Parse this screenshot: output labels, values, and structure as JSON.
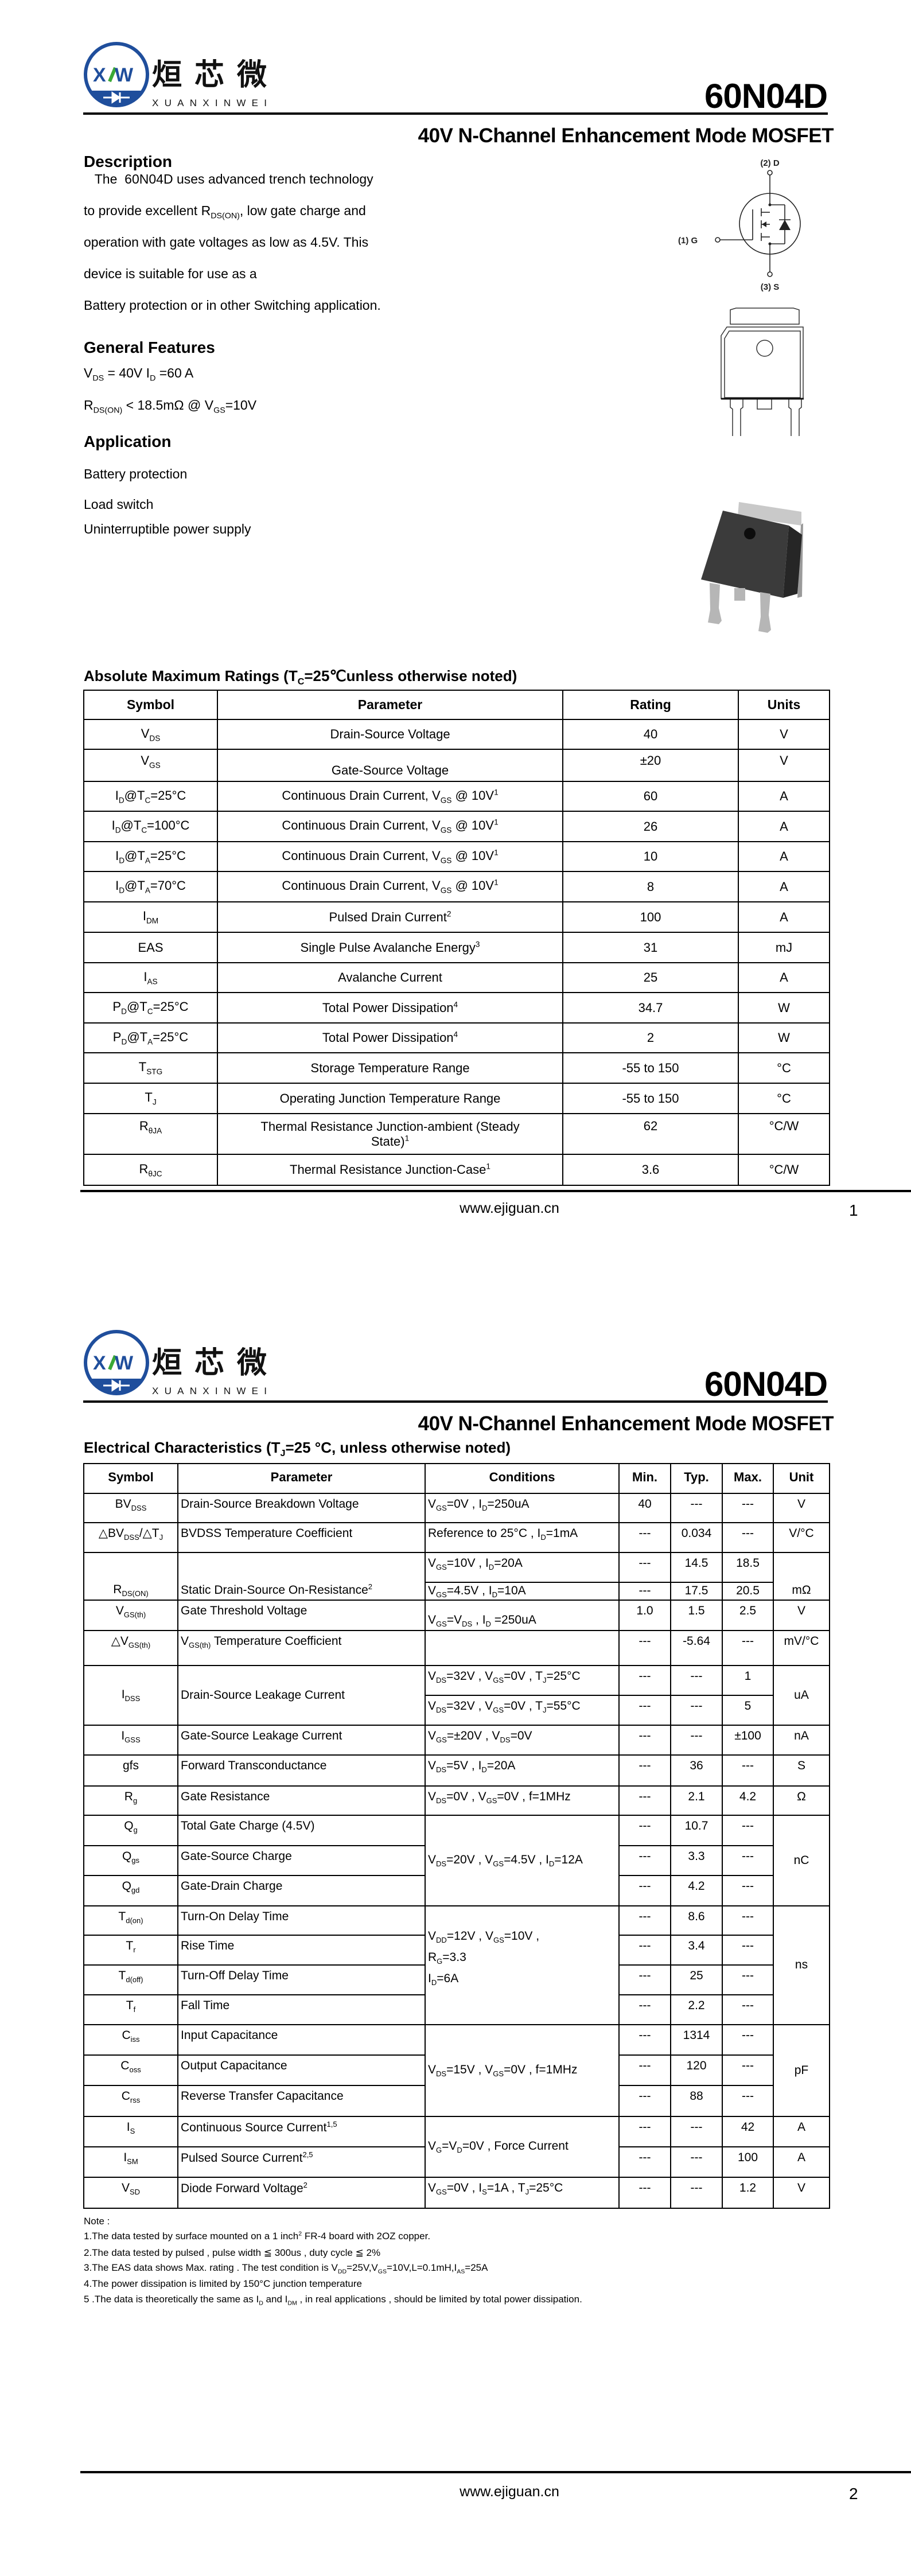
{
  "header": {
    "logo": {
      "mark": "XW",
      "chinese_name": "烜芯微",
      "latin_name": "XUANXINWEI",
      "blue": "#1f4e9c",
      "green": "#3aa935"
    },
    "part_number": "60N04D",
    "subtitle": "40V N-Channel Enhancement Mode MOSFET"
  },
  "description": {
    "heading": "Description",
    "lines": [
      "   The  60N04D uses advanced trench technology",
      [
        "to provide excellent R",
        {
          "sub": "DS(ON)"
        },
        ", low gate charge and"
      ],
      "operation with gate voltages as low as 4.5V. This",
      "device is suitable for use as a",
      "Battery protection or in other Switching application."
    ]
  },
  "features": {
    "heading": "General Features",
    "lines": [
      [
        "V",
        {
          "sub": "DS"
        },
        " = 40V  I",
        {
          "sub": "D"
        },
        " =60 A"
      ],
      [
        "R",
        {
          "sub": "DS(ON)"
        },
        " < 18.5mΩ @ V",
        {
          "sub": "GS"
        },
        "=10V"
      ]
    ]
  },
  "application": {
    "heading": "Application",
    "items": [
      "Battery protection",
      "Load switch",
      "Uninterruptible power supply"
    ]
  },
  "symbol_diagram": {
    "drain": "(2) D",
    "gate": "(1) G",
    "source": "(3) S"
  },
  "abs_max": {
    "title": [
      "Absolute Maximum Ratings (T",
      {
        "sub": "C"
      },
      "=25℃unless otherwise noted)"
    ],
    "headers": [
      "Symbol",
      "Parameter",
      "Rating",
      "Units"
    ],
    "rows": [
      {
        "symbol": [
          "V",
          {
            "sub": "DS"
          }
        ],
        "parameter": "Drain-Source Voltage",
        "rating": "40",
        "unit": "V"
      },
      {
        "symbol": [
          "V",
          {
            "sub": "GS"
          }
        ],
        "parameter": "Gate-Source Voltage",
        "rating": "±20",
        "unit": "V"
      },
      {
        "symbol": [
          "I",
          {
            "sub": "D"
          },
          "@T",
          {
            "sub": "C"
          },
          "=25°C"
        ],
        "parameter": [
          "Continuous Drain Current, V",
          {
            "sub": "GS"
          },
          " @ 10V",
          {
            "sup": "1"
          }
        ],
        "rating": "60",
        "unit": "A"
      },
      {
        "symbol": [
          "I",
          {
            "sub": "D"
          },
          "@T",
          {
            "sub": "C"
          },
          "=100°C"
        ],
        "parameter": [
          "Continuous Drain Current, V",
          {
            "sub": "GS"
          },
          " @ 10V",
          {
            "sup": "1"
          }
        ],
        "rating": "26",
        "unit": "A"
      },
      {
        "symbol": [
          "I",
          {
            "sub": "D"
          },
          "@T",
          {
            "sub": "A"
          },
          "=25°C"
        ],
        "parameter": [
          "Continuous Drain Current, V",
          {
            "sub": "GS"
          },
          " @ 10V",
          {
            "sup": "1"
          }
        ],
        "rating": "10",
        "unit": "A"
      },
      {
        "symbol": [
          "I",
          {
            "sub": "D"
          },
          "@T",
          {
            "sub": "A"
          },
          "=70°C"
        ],
        "parameter": [
          "Continuous Drain Current, V",
          {
            "sub": "GS"
          },
          " @ 10V",
          {
            "sup": "1"
          }
        ],
        "rating": "8",
        "unit": "A"
      },
      {
        "symbol": [
          "I",
          {
            "sub": "DM"
          }
        ],
        "parameter": [
          "Pulsed Drain Current",
          {
            "sup": "2"
          }
        ],
        "rating": "100",
        "unit": "A"
      },
      {
        "symbol": "EAS",
        "parameter": [
          "Single Pulse Avalanche Energy",
          {
            "sup": "3"
          }
        ],
        "rating": "31",
        "unit": "mJ"
      },
      {
        "symbol": [
          "I",
          {
            "sub": "AS"
          }
        ],
        "parameter": "Avalanche Current",
        "rating": "25",
        "unit": "A"
      },
      {
        "symbol": [
          "P",
          {
            "sub": "D"
          },
          "@T",
          {
            "sub": "C"
          },
          "=25°C"
        ],
        "parameter": [
          "Total Power Dissipation",
          {
            "sup": "4"
          }
        ],
        "rating": "34.7",
        "unit": "W"
      },
      {
        "symbol": [
          "P",
          {
            "sub": "D"
          },
          "@T",
          {
            "sub": "A"
          },
          "=25°C"
        ],
        "parameter": [
          "Total Power Dissipation",
          {
            "sup": "4"
          }
        ],
        "rating": "2",
        "unit": "W"
      },
      {
        "symbol": [
          "T",
          {
            "sub": "STG"
          }
        ],
        "parameter": "Storage Temperature Range",
        "rating": "-55 to 150",
        "unit": "°C"
      },
      {
        "symbol": [
          "T",
          {
            "sub": "J"
          }
        ],
        "parameter": "Operating Junction Temperature Range",
        "rating": "-55 to 150",
        "unit": "°C"
      },
      {
        "symbol": [
          "R",
          {
            "sub": "θJA"
          }
        ],
        "parameter": [
          "Thermal Resistance Junction-ambient (Steady State)",
          {
            "sup": "1"
          }
        ],
        "rating": "62",
        "unit": "°C/W"
      },
      {
        "symbol": [
          "R",
          {
            "sub": "θJC"
          }
        ],
        "parameter": [
          "Thermal Resistance Junction-Case",
          {
            "sup": "1"
          }
        ],
        "rating": "3.6",
        "unit": "°C/W"
      }
    ]
  },
  "elec": {
    "title": [
      "Electrical Characteristics (T",
      {
        "sub": "J"
      },
      "=25  °C, unless otherwise noted)"
    ],
    "headers": [
      "Symbol",
      "Parameter",
      "Conditions",
      "Min.",
      "Typ.",
      "Max.",
      "Unit"
    ],
    "rows": [
      {
        "symbol": [
          "BV",
          {
            "sub": "DSS"
          }
        ],
        "parameter": "Drain-Source Breakdown Voltage",
        "conditions": [
          "V",
          {
            "sub": "GS"
          },
          "=0V , I",
          {
            "sub": "D"
          },
          "=250uA"
        ],
        "min": "40",
        "typ": "---",
        "max": "---",
        "unit": "V"
      },
      {
        "symbol": [
          "△BV",
          {
            "sub": "DSS"
          },
          "/△T",
          {
            "sub": "J"
          }
        ],
        "parameter": "BVDSS Temperature Coefficient",
        "conditions": [
          "Reference to 25°C , I",
          {
            "sub": "D"
          },
          "=1mA"
        ],
        "min": "---",
        "typ": "0.034",
        "max": "---",
        "unit": "V/°C"
      },
      {
        "symbol": [
          "R",
          {
            "sub": "DS(ON)"
          }
        ],
        "parameter": [
          "Static Drain-Source On-Resistance",
          {
            "sup": "2"
          }
        ],
        "conditions": [
          [
            "V",
            {
              "sub": "GS"
            },
            "=10V , I",
            {
              "sub": "D"
            },
            "=20A"
          ],
          [
            "V",
            {
              "sub": "GS"
            },
            "=4.5V , I",
            {
              "sub": "D"
            },
            "=10A"
          ]
        ],
        "min": [
          "---",
          "---"
        ],
        "typ": [
          "14.5",
          "17.5"
        ],
        "max": [
          "18.5",
          "20.5"
        ],
        "unit": "mΩ"
      },
      {
        "symbol": [
          "V",
          {
            "sub": "GS(th)"
          }
        ],
        "parameter": "Gate Threshold Voltage",
        "conditions": [
          "V",
          {
            "sub": "GS"
          },
          "=V",
          {
            "sub": "DS"
          },
          " , I",
          {
            "sub": "D"
          },
          " =250uA"
        ],
        "min": "1.0",
        "typ": "1.5",
        "max": "2.5",
        "unit": "V"
      },
      {
        "symbol": [
          "△V",
          {
            "sub": "GS(th)"
          }
        ],
        "parameter": [
          "V",
          {
            "sub": "GS(th)"
          },
          " Temperature Coefficient"
        ],
        "min": "---",
        "typ": "-5.64",
        "max": "---",
        "unit": "mV/°C"
      },
      {
        "symbol": [
          "I",
          {
            "sub": "DSS"
          }
        ],
        "parameter": "Drain-Source Leakage Current",
        "conditions": [
          [
            "V",
            {
              "sub": "DS"
            },
            "=32V , V",
            {
              "sub": "GS"
            },
            "=0V , T",
            {
              "sub": "J"
            },
            "=25°C"
          ],
          [
            "V",
            {
              "sub": "DS"
            },
            "=32V , V",
            {
              "sub": "GS"
            },
            "=0V , T",
            {
              "sub": "J"
            },
            "=55°C"
          ]
        ],
        "min": [
          "---",
          "---"
        ],
        "typ": [
          "---",
          "---"
        ],
        "max": [
          "1",
          "5"
        ],
        "unit": "uA"
      },
      {
        "symbol": [
          "I",
          {
            "sub": "GSS"
          }
        ],
        "parameter": "Gate-Source Leakage Current",
        "conditions": [
          "V",
          {
            "sub": "GS"
          },
          "=±20V , V",
          {
            "sub": "DS"
          },
          "=0V"
        ],
        "min": "---",
        "typ": "---",
        "max": "±100",
        "unit": "nA"
      },
      {
        "symbol": "gfs",
        "parameter": "Forward Transconductance",
        "conditions": [
          "V",
          {
            "sub": "DS"
          },
          "=5V , I",
          {
            "sub": "D"
          },
          "=20A"
        ],
        "min": "---",
        "typ": "36",
        "max": "---",
        "unit": "S"
      },
      {
        "symbol": [
          "R",
          {
            "sub": "g"
          }
        ],
        "parameter": "Gate Resistance",
        "conditions": [
          "V",
          {
            "sub": "DS"
          },
          "=0V , V",
          {
            "sub": "GS"
          },
          "=0V , f=1MHz"
        ],
        "min": "---",
        "typ": "2.1",
        "max": "4.2",
        "unit": "Ω"
      },
      {
        "symbol": [
          "Q",
          {
            "sub": "g"
          }
        ],
        "parameter": "Total Gate Charge (4.5V)",
        "conditions": [
          "V",
          {
            "sub": "DS"
          },
          "=20V , V",
          {
            "sub": "GS"
          },
          "=4.5V , I",
          {
            "sub": "D"
          },
          "=12A"
        ],
        "min": "---",
        "typ": "10.7",
        "max": "---",
        "unit": "nC"
      },
      {
        "symbol": [
          "Q",
          {
            "sub": "gs"
          }
        ],
        "parameter": "Gate-Source Charge",
        "min": "---",
        "typ": "3.3",
        "max": "---"
      },
      {
        "symbol": [
          "Q",
          {
            "sub": "gd"
          }
        ],
        "parameter": "Gate-Drain Charge",
        "min": "---",
        "typ": "4.2",
        "max": "---"
      },
      {
        "symbol": [
          "T",
          {
            "sub": "d(on)"
          }
        ],
        "parameter": "Turn-On Delay Time",
        "conditions": [
          [
            "V",
            {
              "sub": "DD"
            },
            "=12V , V",
            {
              "sub": "GS"
            },
            "=10V ,"
          ],
          [
            "R",
            {
              "sub": "G"
            },
            "=3.3"
          ],
          [
            "I",
            {
              "sub": "D"
            },
            "=6A"
          ]
        ],
        "min": "---",
        "typ": "8.6",
        "max": "---",
        "unit": "ns"
      },
      {
        "symbol": [
          "T",
          {
            "sub": "r"
          }
        ],
        "parameter": "Rise Time",
        "min": "---",
        "typ": "3.4",
        "max": "---"
      },
      {
        "symbol": [
          "T",
          {
            "sub": "d(off)"
          }
        ],
        "parameter": "Turn-Off Delay Time",
        "min": "---",
        "typ": "25",
        "max": "---"
      },
      {
        "symbol": [
          "T",
          {
            "sub": "f"
          }
        ],
        "parameter": "Fall Time",
        "min": "---",
        "typ": "2.2",
        "max": "---"
      },
      {
        "symbol": [
          "C",
          {
            "sub": "iss"
          }
        ],
        "parameter": "Input Capacitance",
        "conditions": [
          "V",
          {
            "sub": "DS"
          },
          "=15V , V",
          {
            "sub": "GS"
          },
          "=0V , f=1MHz"
        ],
        "min": "---",
        "typ": "1314",
        "max": "---",
        "unit": "pF"
      },
      {
        "symbol": [
          "C",
          {
            "sub": "oss"
          }
        ],
        "parameter": "Output Capacitance",
        "min": "---",
        "typ": "120",
        "max": "---"
      },
      {
        "symbol": [
          "C",
          {
            "sub": "rss"
          }
        ],
        "parameter": "Reverse Transfer Capacitance",
        "min": "---",
        "typ": "88",
        "max": "---"
      },
      {
        "symbol": [
          "I",
          {
            "sub": "S"
          }
        ],
        "parameter": [
          "Continuous Source Current",
          {
            "sup": "1,5"
          }
        ],
        "conditions": [
          "V",
          {
            "sub": "G"
          },
          "=V",
          {
            "sub": "D"
          },
          "=0V , Force Current"
        ],
        "min": "---",
        "typ": "---",
        "max": "42",
        "unit": "A"
      },
      {
        "symbol": [
          "I",
          {
            "sub": "SM"
          }
        ],
        "parameter": [
          "Pulsed Source Current",
          {
            "sup": "2,5"
          }
        ],
        "min": "---",
        "typ": "---",
        "max": "100",
        "unit": "A"
      },
      {
        "symbol": [
          "V",
          {
            "sub": "SD"
          }
        ],
        "parameter": [
          "Diode Forward Voltage",
          {
            "sup": "2"
          }
        ],
        "conditions": [
          "V",
          {
            "sub": "GS"
          },
          "=0V , I",
          {
            "sub": "S"
          },
          "=1A , T",
          {
            "sub": "J"
          },
          "=25°C"
        ],
        "min": "---",
        "typ": "---",
        "max": "1.2",
        "unit": "V"
      }
    ]
  },
  "notes": {
    "heading": "Note :",
    "items": [
      [
        "1.The data tested by surface mounted on a 1 inch",
        {
          "sup": "2"
        },
        " FR-4 board with 2OZ copper."
      ],
      "2.The data tested by pulsed , pulse width ≦ 300us , duty cycle ≦ 2%",
      [
        "3.The EAS data shows Max. rating . The test condition is V",
        {
          "sub": "DD"
        },
        "=25V,V",
        {
          "sub": "GS"
        },
        "=10V,L=0.1mH,I",
        {
          "sub": "AS"
        },
        "=25A"
      ],
      "4.The power dissipation is limited by 150°C junction temperature",
      [
        "5 .The data is theoretically the same as I",
        {
          "sub": "D"
        },
        " and I",
        {
          "sub": "DM"
        },
        " , in real applications , should be limited by total power dissipation."
      ]
    ]
  },
  "footer": {
    "website": "www.ejiguan.cn",
    "pages": [
      "1",
      "2"
    ]
  }
}
